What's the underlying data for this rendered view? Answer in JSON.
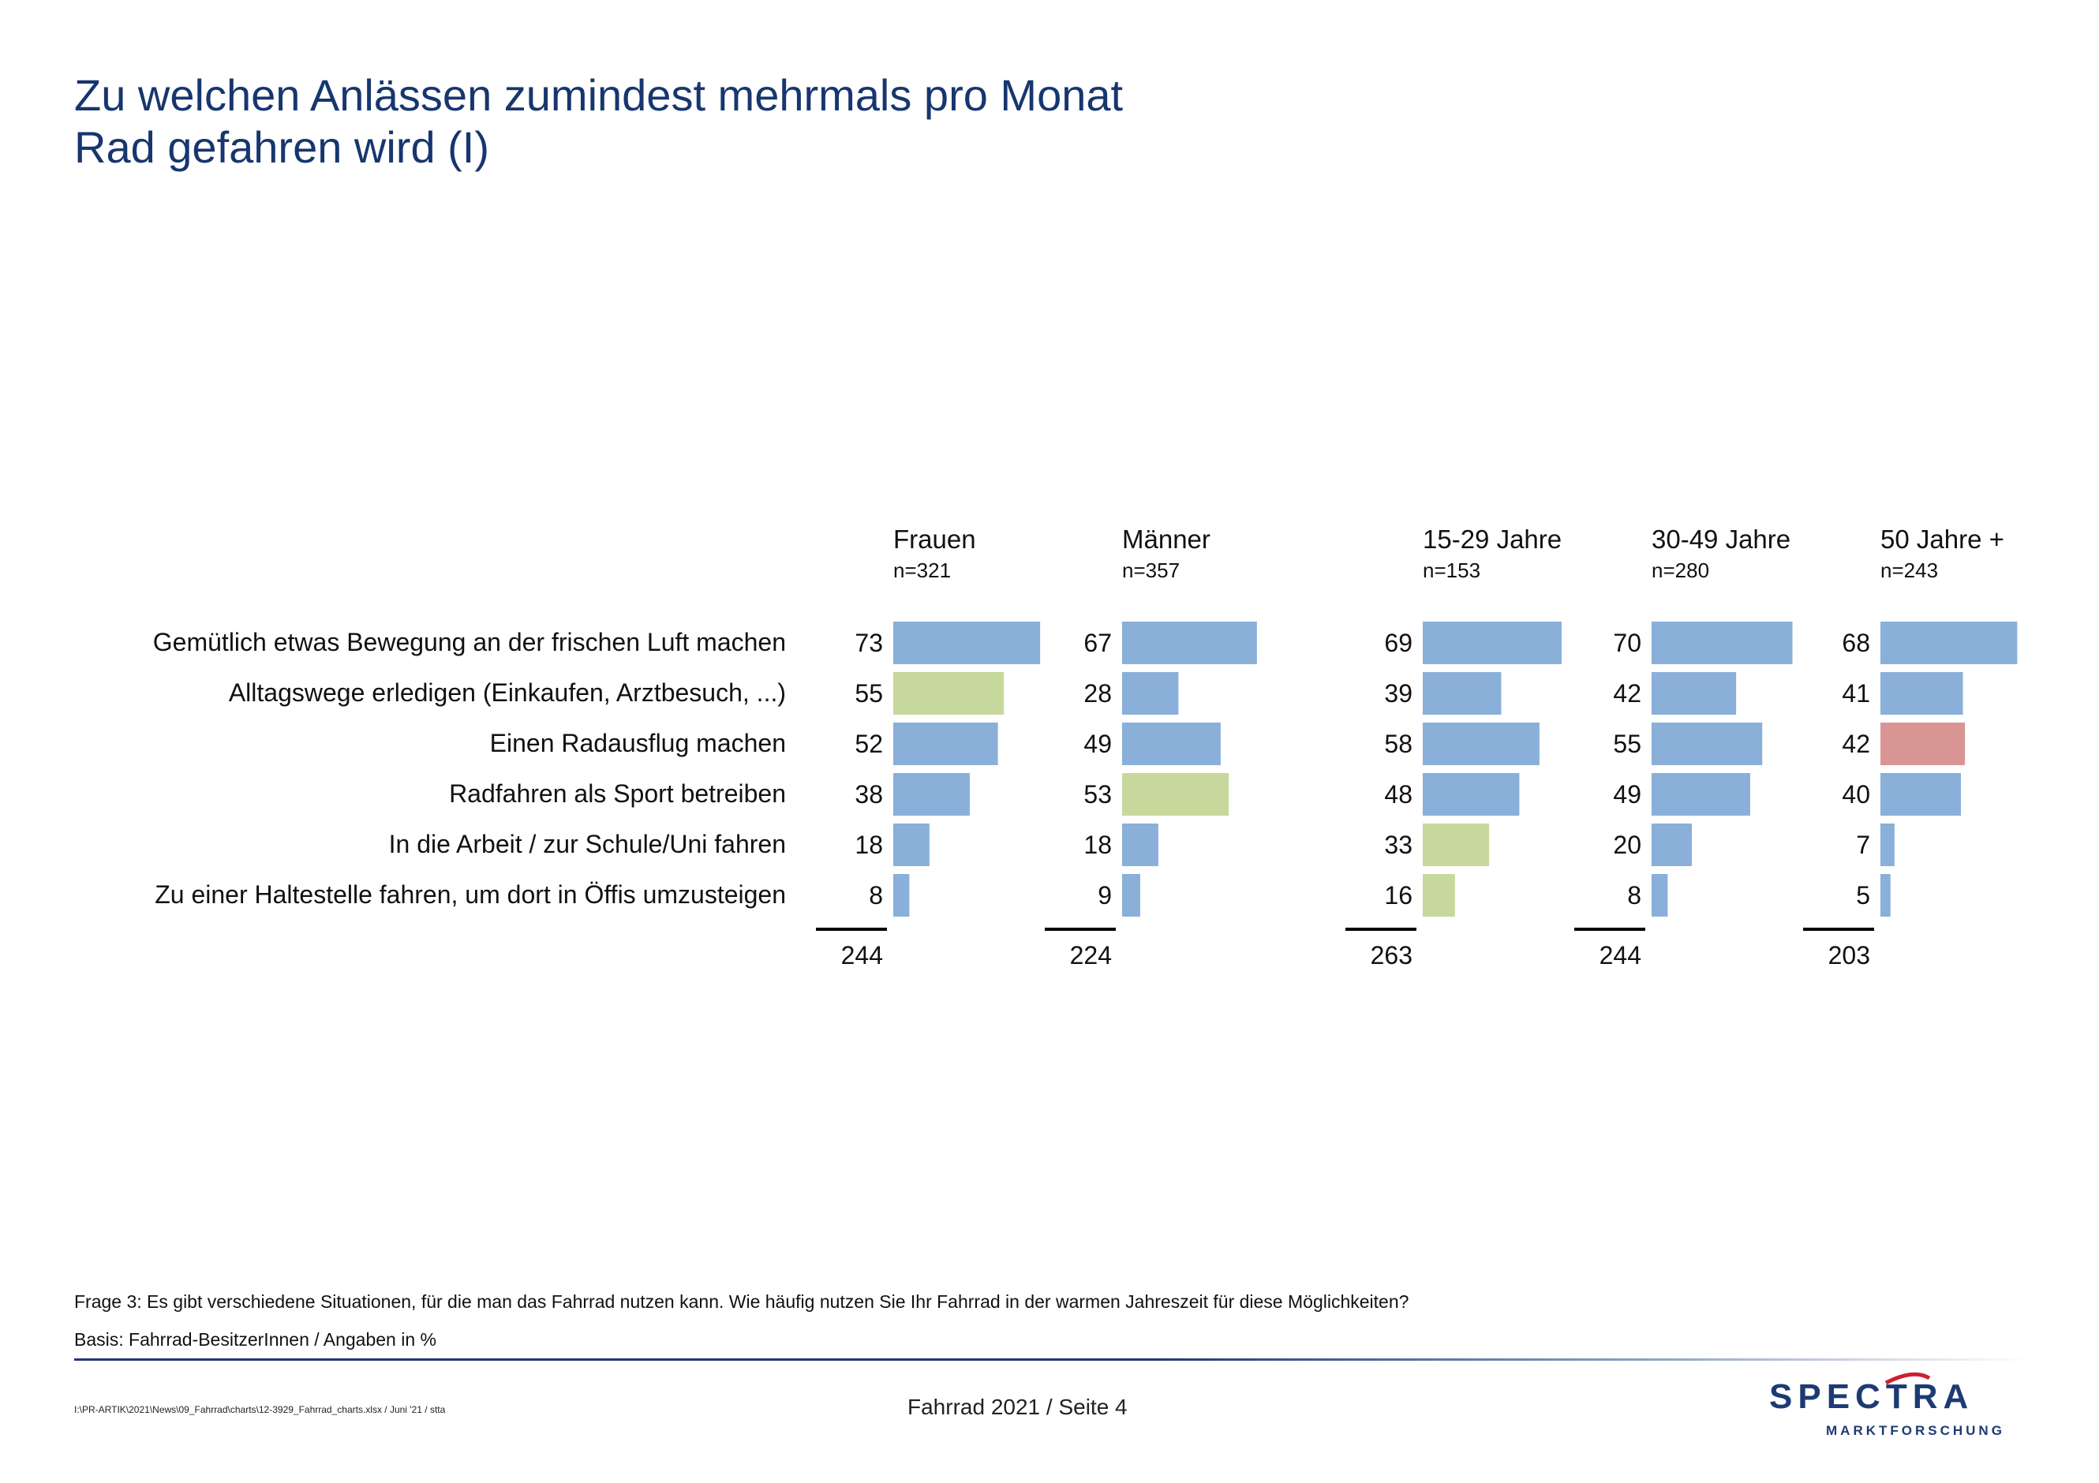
{
  "title": {
    "line1": "Zu welchen Anlässen zumindest mehrmals pro Monat",
    "line2": "Rad gefahren wird (I)"
  },
  "chart_data": {
    "type": "bar",
    "orientation": "horizontal",
    "categories": [
      "Gemütlich etwas Bewegung an der frischen Luft machen",
      "Alltagswege erledigen (Einkaufen, Arztbesuch, ...)",
      "Einen Radausflug machen",
      "Radfahren als Sport betreiben",
      "In die Arbeit / zur Schule/Uni fahren",
      "Zu einer Haltestelle fahren, um dort in Öffis umzusteigen"
    ],
    "series": [
      {
        "name": "Frauen",
        "n": "n=321",
        "values": [
          73,
          55,
          52,
          38,
          18,
          8
        ],
        "total": "244",
        "highlight": [
          "none",
          "above",
          "none",
          "none",
          "none",
          "none"
        ]
      },
      {
        "name": "Männer",
        "n": "n=357",
        "values": [
          67,
          28,
          49,
          53,
          18,
          9
        ],
        "total": "224",
        "highlight": [
          "none",
          "none",
          "none",
          "above",
          "none",
          "none"
        ]
      },
      {
        "name": "15-29 Jahre",
        "n": "n=153",
        "values": [
          69,
          39,
          58,
          48,
          33,
          16
        ],
        "total": "263",
        "highlight": [
          "none",
          "none",
          "none",
          "none",
          "above",
          "above"
        ]
      },
      {
        "name": "30-49 Jahre",
        "n": "n=280",
        "values": [
          70,
          42,
          55,
          49,
          20,
          8
        ],
        "total": "244",
        "highlight": [
          "none",
          "none",
          "none",
          "none",
          "none",
          "none"
        ]
      },
      {
        "name": "50 Jahre +",
        "n": "n=243",
        "values": [
          68,
          41,
          42,
          40,
          7,
          5
        ],
        "total": "203",
        "highlight": [
          "none",
          "none",
          "below",
          "none",
          "none",
          "none"
        ]
      }
    ],
    "xlim": [
      0,
      100
    ],
    "colors": {
      "none": "#8aafd9",
      "above": "#c6d89c",
      "below": "#d99594"
    },
    "xlabel": "",
    "ylabel": ""
  },
  "footer": {
    "question": "Frage 3: Es gibt verschiedene Situationen, für die man das Fahrrad nutzen kann. Wie häufig nutzen Sie Ihr Fahrrad in der warmen Jahreszeit für diese Möglichkeiten?",
    "basis": "Basis: Fahrrad-BesitzerInnen / Angaben in %",
    "path": "I:\\PR-ARTIK\\2021\\News\\09_Fahrrad\\charts\\12-3929_Fahrrad_charts.xlsx / Juni '21 / stta",
    "page": "Fahrrad 2021  /  Seite  4"
  },
  "logo": {
    "name": "SPECTRA",
    "sub": "MARKTFORSCHUNG",
    "color": "#1d3a72",
    "accent": "#d0202e"
  }
}
